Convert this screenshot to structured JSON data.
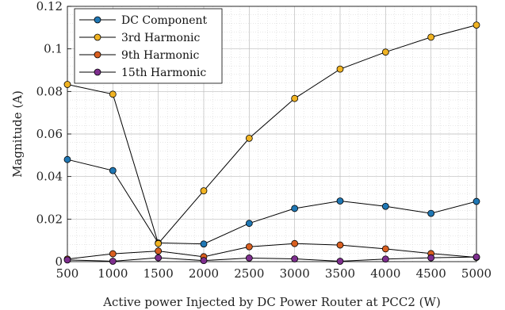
{
  "chart_data": {
    "type": "line",
    "xlabel": "Active power Injected by DC Power Router at PCC2 (W)",
    "ylabel": "Magnitude (A)",
    "x": [
      500,
      1000,
      1500,
      2000,
      2500,
      3000,
      3500,
      4000,
      4500,
      5000
    ],
    "xlim": [
      500,
      5000
    ],
    "ylim": [
      0,
      0.12
    ],
    "xticks": [
      500,
      1000,
      1500,
      2000,
      2500,
      3000,
      3500,
      4000,
      4500,
      5000
    ],
    "yticks": [
      0,
      0.02,
      0.04,
      0.06,
      0.08,
      0.1,
      0.12
    ],
    "ytick_labels": [
      "0",
      "0.02",
      "0.04",
      "0.06",
      "0.08",
      "0.1",
      "0.12"
    ],
    "grid": true,
    "legend_position": "top-left",
    "series": [
      {
        "name": "DC Component",
        "color": "#1f77b4",
        "values": [
          0.048,
          0.0428,
          0.0088,
          0.0083,
          0.018,
          0.025,
          0.0285,
          0.026,
          0.0227,
          0.0283
        ]
      },
      {
        "name": "3rd Harmonic",
        "color": "#f0b323",
        "values": [
          0.0833,
          0.0787,
          0.0085,
          0.0333,
          0.058,
          0.0767,
          0.0905,
          0.0985,
          0.1055,
          0.1112
        ]
      },
      {
        "name": "9th Harmonic",
        "color": "#d95f20",
        "values": [
          0.0012,
          0.0037,
          0.005,
          0.0023,
          0.007,
          0.0085,
          0.0078,
          0.006,
          0.0038,
          0.002
        ]
      },
      {
        "name": "15th Harmonic",
        "color": "#7e2f8e",
        "values": [
          0.0008,
          0.0002,
          0.0018,
          0.0005,
          0.0017,
          0.0013,
          0.0002,
          0.0012,
          0.0018,
          0.0022
        ]
      }
    ]
  }
}
